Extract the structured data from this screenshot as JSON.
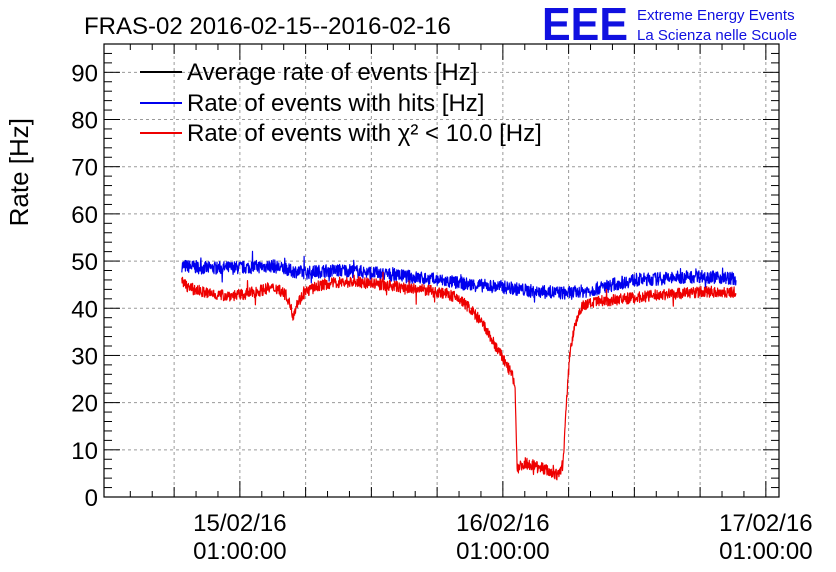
{
  "header": {
    "title": "FRAS-02 2016-02-15--2016-02-16",
    "brand": "EEE",
    "brand_line1": "Extreme Energy Events",
    "brand_line2": "La Scienza nelle Scuole"
  },
  "chart_data": {
    "type": "line",
    "title": "FRAS-02 2016-02-15--2016-02-16",
    "xlabel": "",
    "ylabel": "Rate [Hz]",
    "ylim": [
      0,
      96
    ],
    "yticks": [
      0,
      10,
      20,
      30,
      40,
      50,
      60,
      70,
      80,
      90
    ],
    "xlim_hours": [
      -12.4,
      49.2
    ],
    "xticks": [
      {
        "hour": 0,
        "date": "15/02/16",
        "time": "01:00:00"
      },
      {
        "hour": 24,
        "date": "16/02/16",
        "time": "01:00:00"
      },
      {
        "hour": 48,
        "date": "17/02/16",
        "time": "01:00:00"
      }
    ],
    "grid": true,
    "legend_position": "top-left",
    "series": [
      {
        "name": "Average rate of events [Hz]",
        "color": "#000000",
        "points": []
      },
      {
        "name": "Rate of events with hits [Hz]",
        "color": "#0000ee",
        "points": [
          [
            -5.3,
            49
          ],
          [
            -3,
            48.5
          ],
          [
            0,
            48.6
          ],
          [
            3,
            49
          ],
          [
            4.5,
            48
          ],
          [
            6,
            47.5
          ],
          [
            8,
            48
          ],
          [
            10,
            48
          ],
          [
            12,
            47.5
          ],
          [
            15,
            46.8
          ],
          [
            18,
            46
          ],
          [
            21,
            45
          ],
          [
            24,
            44.5
          ],
          [
            27,
            43.5
          ],
          [
            30,
            43.2
          ],
          [
            32,
            43.8
          ],
          [
            34,
            45
          ],
          [
            36,
            46
          ],
          [
            38,
            46.2
          ],
          [
            40,
            46.5
          ],
          [
            42,
            46.8
          ],
          [
            44,
            46.5
          ],
          [
            45.3,
            46.2
          ]
        ]
      },
      {
        "name": "Rate of events with χ² < 10.0 [Hz]",
        "color": "#ee0000",
        "points": [
          [
            -5.3,
            45.5
          ],
          [
            -4.5,
            44.2
          ],
          [
            -3,
            43.2
          ],
          [
            -1.5,
            42.7
          ],
          [
            0,
            42.8
          ],
          [
            1.5,
            43.5
          ],
          [
            2.5,
            44.2
          ],
          [
            3.5,
            44.2
          ],
          [
            4.3,
            42.5
          ],
          [
            4.6,
            40.5
          ],
          [
            4.85,
            38.5
          ],
          [
            5.2,
            41
          ],
          [
            6,
            43.5
          ],
          [
            7.5,
            45
          ],
          [
            9,
            45.5
          ],
          [
            11,
            45.5
          ],
          [
            13,
            45
          ],
          [
            15,
            44.3
          ],
          [
            17,
            43.8
          ],
          [
            18.7,
            43.2
          ],
          [
            20,
            42
          ],
          [
            21,
            40
          ],
          [
            22.2,
            36.5
          ],
          [
            23.2,
            32.5
          ],
          [
            24.1,
            29
          ],
          [
            24.8,
            26
          ],
          [
            25.1,
            24
          ],
          [
            25.3,
            6
          ],
          [
            26,
            7.2
          ],
          [
            27.3,
            6.5
          ],
          [
            28.2,
            5.5
          ],
          [
            29,
            4.5
          ],
          [
            29.5,
            7
          ],
          [
            29.8,
            20
          ],
          [
            30.1,
            30
          ],
          [
            30.5,
            36
          ],
          [
            31.2,
            40.5
          ],
          [
            33,
            41.5
          ],
          [
            35,
            42
          ],
          [
            37,
            42.5
          ],
          [
            39,
            43
          ],
          [
            41,
            43.3
          ],
          [
            43,
            43.5
          ],
          [
            45.3,
            43.3
          ]
        ]
      }
    ]
  }
}
